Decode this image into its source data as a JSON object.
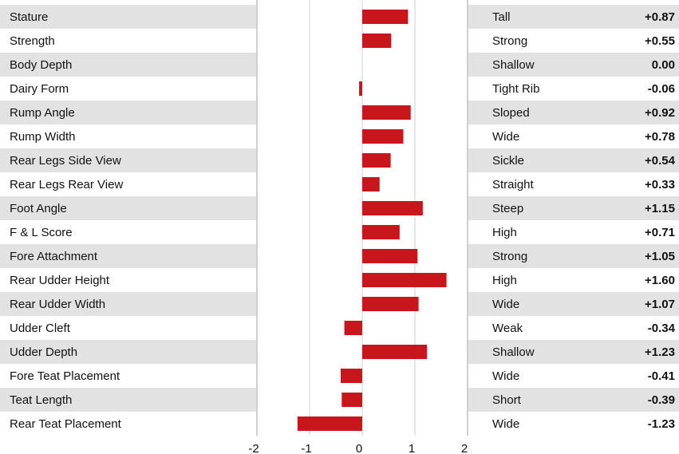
{
  "chart_data": {
    "type": "bar",
    "orientation": "horizontal",
    "xlim": [
      -2,
      2
    ],
    "x_ticks": [
      "-2",
      "-1",
      "0",
      "1",
      "2"
    ],
    "grid": true,
    "bar_color": "#c8161d",
    "row_stripe_color": "#e2e2e2",
    "rows": [
      {
        "trait": "Stature",
        "direction": "Tall",
        "value": 0.87,
        "value_label": "+0.87"
      },
      {
        "trait": "Strength",
        "direction": "Strong",
        "value": 0.55,
        "value_label": "+0.55"
      },
      {
        "trait": "Body Depth",
        "direction": "Shallow",
        "value": 0.0,
        "value_label": "0.00"
      },
      {
        "trait": "Dairy Form",
        "direction": "Tight Rib",
        "value": -0.06,
        "value_label": "-0.06"
      },
      {
        "trait": "Rump Angle",
        "direction": "Sloped",
        "value": 0.92,
        "value_label": "+0.92"
      },
      {
        "trait": "Rump Width",
        "direction": "Wide",
        "value": 0.78,
        "value_label": "+0.78"
      },
      {
        "trait": "Rear Legs Side View",
        "direction": "Sickle",
        "value": 0.54,
        "value_label": "+0.54"
      },
      {
        "trait": "Rear Legs Rear View",
        "direction": "Straight",
        "value": 0.33,
        "value_label": "+0.33"
      },
      {
        "trait": "Foot Angle",
        "direction": "Steep",
        "value": 1.15,
        "value_label": "+1.15"
      },
      {
        "trait": "F & L Score",
        "direction": "High",
        "value": 0.71,
        "value_label": "+0.71"
      },
      {
        "trait": "Fore Attachment",
        "direction": "Strong",
        "value": 1.05,
        "value_label": "+1.05"
      },
      {
        "trait": "Rear Udder Height",
        "direction": "High",
        "value": 1.6,
        "value_label": "+1.60"
      },
      {
        "trait": "Rear Udder Width",
        "direction": "Wide",
        "value": 1.07,
        "value_label": "+1.07"
      },
      {
        "trait": "Udder Cleft",
        "direction": "Weak",
        "value": -0.34,
        "value_label": "-0.34"
      },
      {
        "trait": "Udder Depth",
        "direction": "Shallow",
        "value": 1.23,
        "value_label": "+1.23"
      },
      {
        "trait": "Fore Teat Placement",
        "direction": "Wide",
        "value": -0.41,
        "value_label": "-0.41"
      },
      {
        "trait": "Teat Length",
        "direction": "Short",
        "value": -0.39,
        "value_label": "-0.39"
      },
      {
        "trait": "Rear Teat Placement",
        "direction": "Wide",
        "value": -1.23,
        "value_label": "-1.23"
      }
    ]
  }
}
